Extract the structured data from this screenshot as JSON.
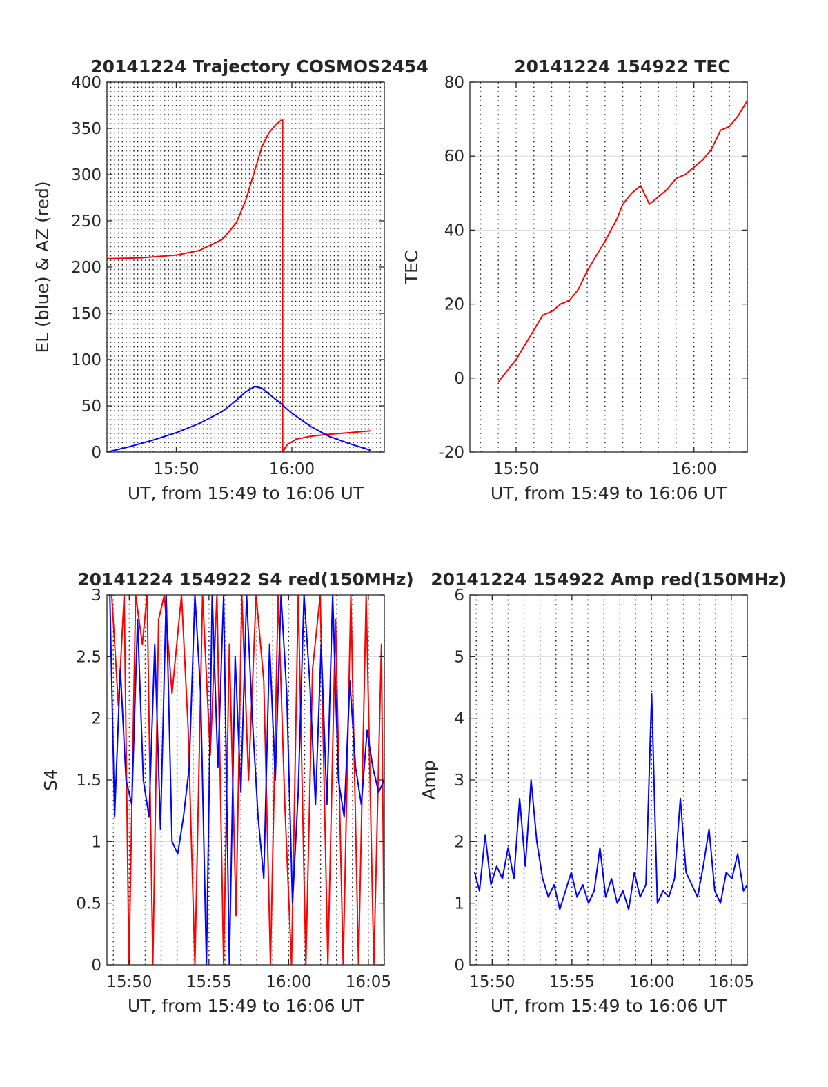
{
  "chart_data": [
    {
      "type": "line",
      "title": "20141224 Trajectory COSMOS2454",
      "xlabel": "UT, from 15:49 to 16:06 UT",
      "ylabel": "EL (blue) & AZ (red)",
      "xlim": [
        15.2,
        16.4
      ],
      "ylim": [
        0,
        400
      ],
      "xticks": [
        {
          "value": 15.5,
          "label": "15:50"
        },
        {
          "value": 16.0,
          "label": "16:00"
        }
      ],
      "yticks": [
        {
          "value": 0,
          "label": "0"
        },
        {
          "value": 50,
          "label": "50"
        },
        {
          "value": 100,
          "label": "100"
        },
        {
          "value": 150,
          "label": "150"
        },
        {
          "value": 200,
          "label": "200"
        },
        {
          "value": 250,
          "label": "250"
        },
        {
          "value": 300,
          "label": "300"
        },
        {
          "value": 350,
          "label": "350"
        },
        {
          "value": 400,
          "label": "400"
        }
      ],
      "grid": true,
      "series": [
        {
          "color": "#ff0000",
          "x": [
            15.2,
            15.35,
            15.5,
            15.6,
            15.7,
            15.76,
            15.8,
            15.84,
            15.87,
            15.9,
            15.93,
            15.95,
            15.96,
            15.96,
            15.98,
            16.02,
            16.08,
            16.15,
            16.25,
            16.34
          ],
          "y": [
            209,
            210,
            213,
            218,
            230,
            248,
            272,
            305,
            330,
            345,
            354,
            358,
            359,
            0,
            8,
            14,
            17,
            19,
            21,
            23
          ]
        },
        {
          "color": "#0000ff",
          "x": [
            15.2,
            15.3,
            15.4,
            15.5,
            15.6,
            15.7,
            15.76,
            15.8,
            15.84,
            15.87,
            15.9,
            15.94,
            16.0,
            16.08,
            16.16,
            16.25,
            16.34
          ],
          "y": [
            0,
            6,
            13,
            21,
            31,
            44,
            56,
            65,
            71,
            69,
            63,
            55,
            42,
            28,
            17,
            9,
            2
          ]
        }
      ]
    },
    {
      "type": "line",
      "title": "20141224 154922 TEC",
      "xlabel": "UT, from 15:49 to 16:06 UT",
      "ylabel": "TEC",
      "xlim": [
        15.79,
        16.05
      ],
      "ylim": [
        -20,
        80
      ],
      "xticks": [
        {
          "value": 15.83333,
          "label": "15:50"
        },
        {
          "value": 16.0,
          "label": "16:00"
        }
      ],
      "yticks": [
        {
          "value": -20,
          "label": "-20"
        },
        {
          "value": 0,
          "label": "0"
        },
        {
          "value": 20,
          "label": "20"
        },
        {
          "value": 40,
          "label": "40"
        },
        {
          "value": 60,
          "label": "60"
        },
        {
          "value": 80,
          "label": "80"
        }
      ],
      "grid": true,
      "series": [
        {
          "color": "#ff0000",
          "x": [
            15.8167,
            15.825,
            15.8333,
            15.8417,
            15.85,
            15.8583,
            15.8667,
            15.875,
            15.8833,
            15.8917,
            15.9,
            15.9083,
            15.9167,
            15.9222,
            15.9278,
            15.9333,
            15.9417,
            15.95,
            15.9583,
            15.9667,
            15.975,
            15.9833,
            15.9917,
            16.0,
            16.0083,
            16.0167,
            16.025,
            16.0333,
            16.0417,
            16.05
          ],
          "y": [
            -1,
            2,
            5,
            9,
            13,
            17,
            18,
            20,
            21,
            24,
            29,
            33,
            37,
            40,
            43,
            47,
            50,
            52,
            47,
            49,
            51,
            54,
            55,
            57,
            59,
            62,
            67,
            68,
            71,
            75
          ]
        }
      ]
    },
    {
      "type": "line",
      "title": "20141224 154922 S4 red(150MHz)",
      "xlabel": "UT, from 15:49 to 16:06 UT",
      "ylabel": "S4",
      "xlim": [
        15.81,
        16.1
      ],
      "ylim": [
        0,
        3
      ],
      "xticks": [
        {
          "value": 15.83333,
          "label": "15:50"
        },
        {
          "value": 15.91667,
          "label": "15:55"
        },
        {
          "value": 16.0,
          "label": "16:00"
        },
        {
          "value": 16.08333,
          "label": "16:05"
        }
      ],
      "yticks": [
        {
          "value": 0,
          "label": "0"
        },
        {
          "value": 0.5,
          "label": "0.5"
        },
        {
          "value": 1,
          "label": "1"
        },
        {
          "value": 1.5,
          "label": "1.5"
        },
        {
          "value": 2,
          "label": "2"
        },
        {
          "value": 2.5,
          "label": "2.5"
        },
        {
          "value": 3,
          "label": "3"
        }
      ],
      "grid": true,
      "series": [
        {
          "color": "#ff0000",
          "x": [
            15.815,
            15.822,
            15.828,
            15.833,
            15.84,
            15.847,
            15.852,
            15.858,
            15.864,
            15.87,
            15.878,
            15.888,
            15.895,
            15.902,
            15.91,
            15.918,
            15.925,
            15.932,
            15.938,
            15.945,
            15.951,
            15.958,
            15.966,
            15.974,
            15.981,
            15.989,
            15.996,
            16.003,
            16.01,
            16.018,
            16.025,
            16.033,
            16.041,
            16.049,
            16.057,
            16.065,
            16.073,
            16.081,
            16.089,
            16.097,
            16.1
          ],
          "y": [
            3.0,
            2.1,
            3.0,
            0.0,
            3.0,
            2.6,
            3.0,
            0.0,
            2.8,
            3.0,
            2.2,
            3.0,
            1.9,
            0.0,
            3.0,
            1.7,
            3.0,
            0.0,
            2.6,
            0.4,
            3.0,
            1.5,
            3.0,
            2.3,
            0.0,
            3.0,
            1.3,
            0.0,
            3.0,
            0.0,
            2.4,
            3.0,
            0.0,
            2.8,
            0.0,
            3.0,
            0.0,
            3.0,
            0.0,
            2.6,
            0.0
          ]
        },
        {
          "color": "#0000ff",
          "x": [
            15.813,
            15.818,
            15.824,
            15.83,
            15.836,
            15.842,
            15.848,
            15.854,
            15.86,
            15.866,
            15.872,
            15.878,
            15.884,
            15.89,
            15.896,
            15.902,
            15.908,
            15.914,
            15.92,
            15.926,
            15.932,
            15.938,
            15.944,
            15.95,
            15.956,
            15.962,
            15.968,
            15.974,
            15.98,
            15.986,
            15.992,
            15.998,
            16.004,
            16.01,
            16.016,
            16.022,
            16.028,
            16.034,
            16.04,
            16.046,
            16.052,
            16.058,
            16.064,
            16.07,
            16.076,
            16.082,
            16.088,
            16.094,
            16.1
          ],
          "y": [
            3.0,
            1.2,
            2.4,
            1.5,
            1.3,
            2.8,
            1.5,
            1.2,
            2.6,
            1.1,
            3.0,
            1.0,
            0.9,
            1.2,
            1.6,
            3.0,
            2.2,
            0.0,
            3.0,
            1.6,
            3.0,
            0.0,
            2.5,
            1.4,
            3.0,
            2.0,
            1.2,
            0.7,
            2.6,
            1.5,
            3.0,
            2.2,
            0.5,
            1.4,
            3.0,
            2.3,
            1.3,
            2.6,
            1.3,
            3.0,
            1.5,
            1.2,
            2.3,
            1.6,
            1.3,
            1.9,
            1.6,
            1.4,
            1.5
          ]
        }
      ]
    },
    {
      "type": "line",
      "title": "20141224 154922 Amp red(150MHz)",
      "xlabel": "UT, from 15:49 to 16:06 UT",
      "ylabel": "Amp",
      "xlim": [
        15.81,
        16.1
      ],
      "ylim": [
        0,
        6
      ],
      "xticks": [
        {
          "value": 15.83333,
          "label": "15:50"
        },
        {
          "value": 15.91667,
          "label": "15:55"
        },
        {
          "value": 16.0,
          "label": "16:00"
        },
        {
          "value": 16.08333,
          "label": "16:05"
        }
      ],
      "yticks": [
        {
          "value": 0,
          "label": "0"
        },
        {
          "value": 1,
          "label": "1"
        },
        {
          "value": 2,
          "label": "2"
        },
        {
          "value": 3,
          "label": "3"
        },
        {
          "value": 4,
          "label": "4"
        },
        {
          "value": 5,
          "label": "5"
        },
        {
          "value": 6,
          "label": "6"
        }
      ],
      "grid": true,
      "series": [
        {
          "color": "#0000ff",
          "x": [
            15.815,
            15.82,
            15.826,
            15.832,
            15.838,
            15.844,
            15.85,
            15.856,
            15.862,
            15.868,
            15.874,
            15.88,
            15.886,
            15.892,
            15.898,
            15.904,
            15.91,
            15.916,
            15.922,
            15.928,
            15.934,
            15.94,
            15.946,
            15.952,
            15.958,
            15.964,
            15.97,
            15.976,
            15.982,
            15.988,
            15.994,
            16.0,
            16.006,
            16.012,
            16.018,
            16.024,
            16.03,
            16.036,
            16.042,
            16.048,
            16.054,
            16.06,
            16.066,
            16.072,
            16.078,
            16.084,
            16.09,
            16.096,
            16.1
          ],
          "y": [
            1.5,
            1.2,
            2.1,
            1.3,
            1.6,
            1.4,
            1.9,
            1.4,
            2.7,
            1.6,
            3.0,
            2.0,
            1.4,
            1.1,
            1.3,
            0.9,
            1.2,
            1.5,
            1.1,
            1.3,
            1.0,
            1.2,
            1.9,
            1.1,
            1.4,
            1.0,
            1.2,
            0.9,
            1.5,
            1.1,
            1.3,
            4.4,
            1.0,
            1.2,
            1.1,
            1.4,
            2.7,
            1.5,
            1.3,
            1.1,
            1.6,
            2.2,
            1.2,
            1.0,
            1.5,
            1.4,
            1.8,
            1.2,
            1.3
          ]
        }
      ]
    }
  ]
}
